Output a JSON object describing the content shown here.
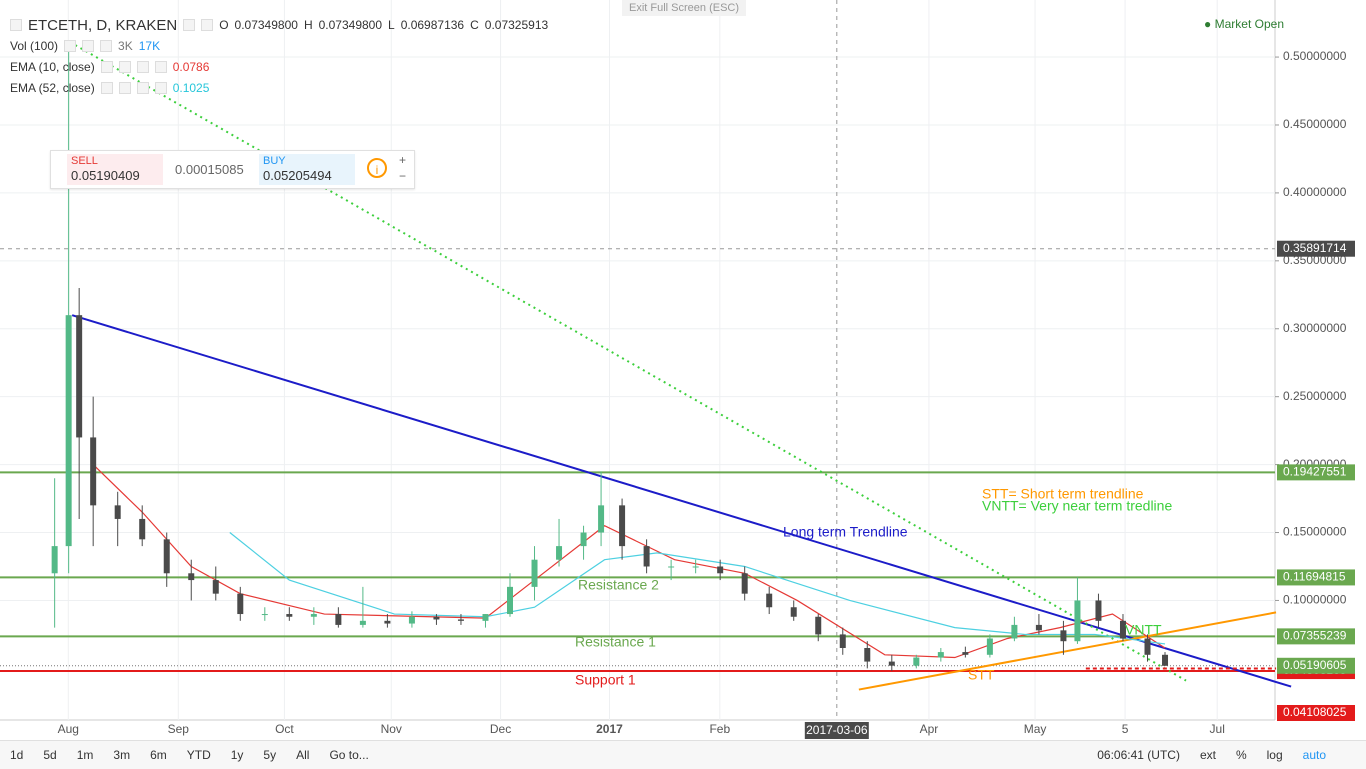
{
  "header": {
    "symbol": "ETCETH, D, KRAKEN",
    "o_label": "O",
    "open": "0.07349800",
    "h_label": "H",
    "high": "0.07349800",
    "l_label": "L",
    "low": "0.06987136",
    "c_label": "C",
    "close": "0.07325913",
    "exit": "Exit Full Screen (ESC)",
    "market": "Market Open"
  },
  "indicators": [
    {
      "name": "Vol (100)",
      "values": [
        "3K",
        "17K"
      ]
    },
    {
      "name": "EMA (10, close)",
      "values": [
        "0.0786"
      ]
    },
    {
      "name": "EMA (52, close)",
      "values": [
        "0.1025"
      ]
    }
  ],
  "trade": {
    "sell_label": "SELL",
    "sell": "0.05190409",
    "spread": "0.00015085",
    "buy_label": "BUY",
    "buy": "0.05205494"
  },
  "chart": {
    "type": "candlestick",
    "xlim": [
      -12.6,
      351.4
    ],
    "ylim": [
      0.012,
      0.542
    ],
    "xticks": [
      {
        "value": 6.9,
        "label": "Aug"
      },
      {
        "value": 38.3,
        "label": "Sep"
      },
      {
        "value": 68.6,
        "label": "Oct"
      },
      {
        "value": 99.1,
        "label": "Nov"
      },
      {
        "value": 130.3,
        "label": "Dec"
      },
      {
        "value": 161.4,
        "label": "2017"
      },
      {
        "value": 192.9,
        "label": "Feb"
      },
      {
        "value": 252.6,
        "label": "Apr"
      },
      {
        "value": 282.9,
        "label": "May"
      },
      {
        "value": 308.6,
        "label": "5"
      },
      {
        "value": 334.9,
        "label": "Jul"
      }
    ],
    "crosshair": {
      "x": {
        "value": 226.3,
        "label": "2017-03-06"
      },
      "y": 0.35891714
    },
    "yticks": [
      {
        "value": 0.5,
        "label": "0.50000000"
      },
      {
        "value": 0.45,
        "label": "0.45000000"
      },
      {
        "value": 0.4,
        "label": "0.40000000"
      },
      {
        "value": 0.35,
        "label": "0.35000000"
      },
      {
        "value": 0.3,
        "label": "0.30000000"
      },
      {
        "value": 0.25,
        "label": "0.25000000"
      },
      {
        "value": 0.2,
        "label": "0.20000000"
      },
      {
        "value": 0.15,
        "label": "0.15000000"
      },
      {
        "value": 0.1,
        "label": "0.10000000"
      }
    ],
    "up_color": "#53b987",
    "down_color": "#4a4a4a",
    "candles": {
      "x": [
        3,
        7,
        10,
        14,
        21,
        28,
        35,
        42,
        49,
        56,
        63,
        70,
        77,
        84,
        91,
        98,
        105,
        112,
        119,
        126,
        133,
        140,
        147,
        154,
        159,
        165,
        172,
        179,
        186,
        193,
        200,
        207,
        214,
        221,
        228,
        235,
        242,
        249,
        256,
        263,
        270,
        277,
        284,
        291,
        295,
        301,
        308,
        315,
        320
      ],
      "open": [
        0.12,
        0.14,
        0.31,
        0.22,
        0.17,
        0.16,
        0.145,
        0.12,
        0.115,
        0.105,
        0.09,
        0.09,
        0.088,
        0.09,
        0.082,
        0.085,
        0.083,
        0.088,
        0.086,
        0.085,
        0.09,
        0.11,
        0.13,
        0.14,
        0.15,
        0.17,
        0.14,
        0.125,
        0.125,
        0.125,
        0.12,
        0.105,
        0.095,
        0.088,
        0.075,
        0.065,
        0.055,
        0.052,
        0.058,
        0.062,
        0.06,
        0.072,
        0.082,
        0.078,
        0.07,
        0.1,
        0.085,
        0.072,
        0.06
      ],
      "high": [
        0.19,
        0.51,
        0.33,
        0.25,
        0.18,
        0.17,
        0.15,
        0.13,
        0.125,
        0.11,
        0.095,
        0.095,
        0.095,
        0.095,
        0.11,
        0.09,
        0.092,
        0.09,
        0.09,
        0.09,
        0.12,
        0.14,
        0.16,
        0.155,
        0.195,
        0.175,
        0.145,
        0.13,
        0.13,
        0.13,
        0.125,
        0.11,
        0.1,
        0.09,
        0.08,
        0.07,
        0.06,
        0.06,
        0.065,
        0.066,
        0.075,
        0.088,
        0.09,
        0.085,
        0.117,
        0.105,
        0.09,
        0.075,
        0.062
      ],
      "low": [
        0.08,
        0.12,
        0.16,
        0.14,
        0.14,
        0.14,
        0.11,
        0.1,
        0.1,
        0.085,
        0.085,
        0.085,
        0.082,
        0.08,
        0.08,
        0.08,
        0.08,
        0.082,
        0.082,
        0.08,
        0.088,
        0.1,
        0.125,
        0.13,
        0.14,
        0.13,
        0.12,
        0.115,
        0.12,
        0.115,
        0.1,
        0.09,
        0.085,
        0.07,
        0.06,
        0.05,
        0.048,
        0.05,
        0.055,
        0.058,
        0.058,
        0.07,
        0.075,
        0.06,
        0.068,
        0.08,
        0.07,
        0.055,
        0.052
      ],
      "close": [
        0.14,
        0.31,
        0.22,
        0.17,
        0.16,
        0.145,
        0.12,
        0.115,
        0.105,
        0.09,
        0.09,
        0.088,
        0.09,
        0.082,
        0.085,
        0.083,
        0.088,
        0.086,
        0.085,
        0.09,
        0.11,
        0.13,
        0.14,
        0.15,
        0.17,
        0.14,
        0.125,
        0.125,
        0.125,
        0.12,
        0.105,
        0.095,
        0.088,
        0.075,
        0.065,
        0.055,
        0.052,
        0.058,
        0.062,
        0.06,
        0.072,
        0.082,
        0.078,
        0.07,
        0.1,
        0.085,
        0.072,
        0.06,
        0.0519
      ]
    },
    "series": [
      {
        "name": "EMA (10, close)",
        "color": "#e53935",
        "x": [
          14,
          28,
          42,
          56,
          80,
          126,
          140,
          160,
          180,
          200,
          215,
          240,
          260,
          275,
          290,
          305,
          320
        ],
        "values": [
          0.2,
          0.165,
          0.125,
          0.105,
          0.09,
          0.087,
          0.115,
          0.155,
          0.13,
          0.12,
          0.1,
          0.06,
          0.058,
          0.072,
          0.08,
          0.09,
          0.065
        ]
      },
      {
        "name": "EMA (52, close)",
        "color": "#4dd0e1",
        "x": [
          53,
          70,
          100,
          126,
          140,
          160,
          175,
          200,
          230,
          260,
          280,
          300,
          320
        ],
        "values": [
          0.15,
          0.115,
          0.09,
          0.088,
          0.095,
          0.13,
          0.135,
          0.125,
          0.1,
          0.08,
          0.075,
          0.075,
          0.068
        ]
      }
    ],
    "levels": [
      {
        "value": 0.19427551,
        "color": "#6aa84f"
      },
      {
        "value": 0.11694815,
        "color": "#6aa84f"
      },
      {
        "value": 0.07355239,
        "color": "#6aa84f"
      },
      {
        "value": 0.04803165,
        "color": "#e31b1b"
      }
    ],
    "last_price": 0.05190605,
    "volume_label": 0.04108025,
    "trendlines": [
      {
        "color": "#1c1cc8",
        "dash": "",
        "x": [
          8,
          356
        ],
        "values": [
          0.31,
          0.0366
        ]
      },
      {
        "color": "#3ccf3c",
        "dash": "2,4",
        "x": [
          7.4,
          326
        ],
        "values": [
          0.511,
          0.041
        ]
      },
      {
        "color": "#ff9800",
        "dash": "",
        "x": [
          232.6,
          351.7
        ],
        "values": [
          0.0344,
          0.0912
        ]
      },
      {
        "color": "#e31b1b",
        "dash": "4,3",
        "x": [
          297.4,
          351.7
        ],
        "values": [
          0.0499,
          0.0499
        ]
      }
    ],
    "annotations": [
      "Long term Trendline",
      "Resistance 2",
      "Resistance 1",
      "Support 1",
      "STT",
      "VNTT",
      "STT= Short term trendline",
      "VNTT= Very near term tredline"
    ]
  },
  "toolbar": [
    "1d",
    "5d",
    "1m",
    "3m",
    "6m",
    "YTD",
    "1y",
    "5y",
    "All",
    "Go to...",
    "06:06:41 (UTC)",
    "ext",
    "%",
    "log",
    "auto"
  ]
}
